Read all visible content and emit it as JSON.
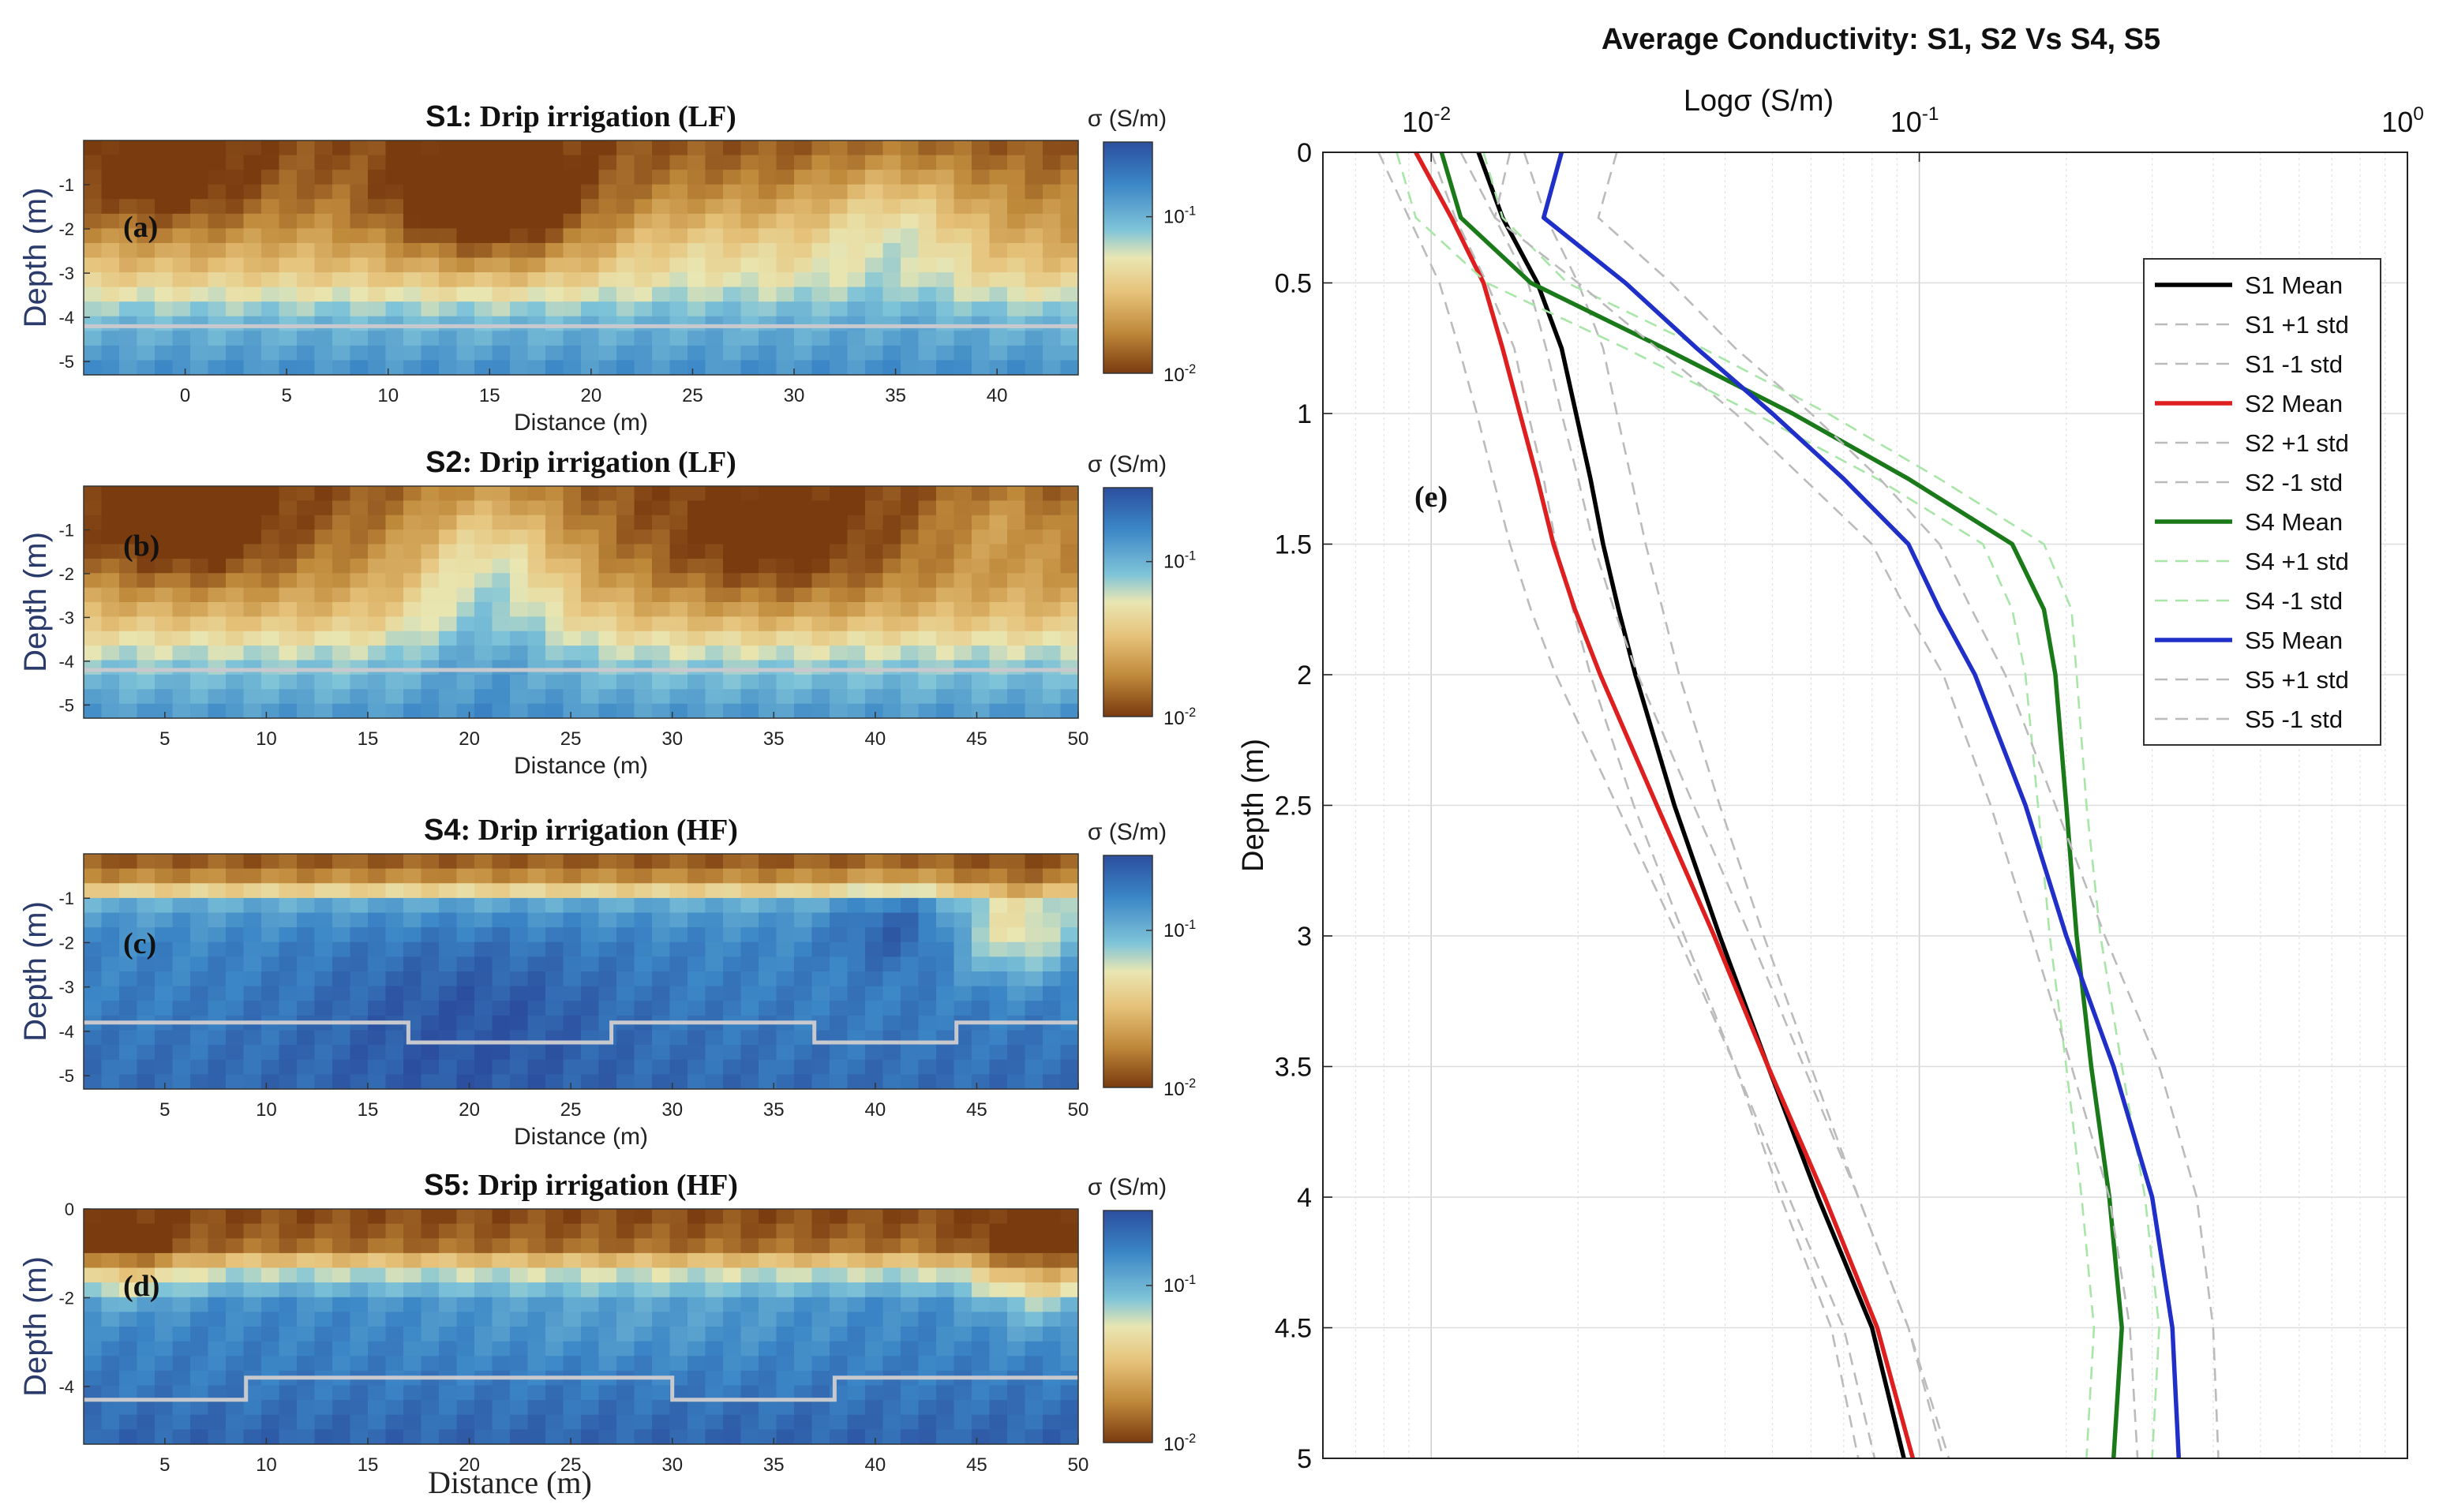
{
  "chart_data": [
    {
      "type": "heatmap",
      "panel": "(a)",
      "title_site": "S1",
      "title_text": ": Drip irrigation (LF)",
      "xlabel": "Distance (m)",
      "ylabel": "Depth (m)",
      "xticks": [
        0,
        5,
        10,
        15,
        20,
        25,
        30,
        35,
        40
      ],
      "xlim": [
        -5,
        44
      ],
      "yticks": [
        -1,
        -2,
        -3,
        -4,
        -5
      ],
      "ylim": [
        -5.3,
        0
      ],
      "colorbar": {
        "label": "σ (S/m)",
        "ticks": [
          "10⁻¹",
          "10⁻²"
        ],
        "range": [
          0.01,
          0.3
        ],
        "scale": "log"
      },
      "wet_front_depth": [
        [
          -5,
          -4.2
        ],
        [
          44,
          -4.2
        ]
      ],
      "features": [
        {
          "x": 15,
          "z": -1.5,
          "amp": -0.9,
          "rx": 5,
          "rz": 1.3
        },
        {
          "x": 35,
          "z": -2.0,
          "amp": 0.6,
          "rx": 4,
          "rz": 1.6
        },
        {
          "x": 26,
          "z": -2.5,
          "amp": 0.3,
          "rx": 6,
          "rz": 1.2
        },
        {
          "x": -1,
          "z": -1.0,
          "amp": -0.5,
          "rx": 5,
          "rz": 1.2
        }
      ],
      "base_profile": [
        [
          0,
          0.012
        ],
        [
          -1,
          0.016
        ],
        [
          -2,
          0.022
        ],
        [
          -3,
          0.035
        ],
        [
          -4,
          0.09
        ],
        [
          -5.3,
          0.15
        ]
      ]
    },
    {
      "type": "heatmap",
      "panel": "(b)",
      "title_site": "S2",
      "title_text": ": Drip irrigation (LF)",
      "xlabel": "Distance (m)",
      "ylabel": "Depth (m)",
      "xticks": [
        5,
        10,
        15,
        20,
        25,
        30,
        35,
        40,
        45,
        50
      ],
      "xlim": [
        1,
        50
      ],
      "yticks": [
        -1,
        -2,
        -3,
        -4,
        -5
      ],
      "ylim": [
        -5.3,
        0
      ],
      "colorbar": {
        "label": "σ (S/m)",
        "ticks": [
          "10⁻¹",
          "10⁻²"
        ],
        "range": [
          0.01,
          0.3
        ],
        "scale": "log"
      },
      "wet_front_depth": [
        [
          1,
          -4.2
        ],
        [
          50,
          -4.2
        ]
      ],
      "features": [
        {
          "x": 21,
          "z": -2.0,
          "amp": 0.8,
          "rx": 4,
          "rz": 2.2
        },
        {
          "x": 6,
          "z": -1.0,
          "amp": -0.6,
          "rx": 5,
          "rz": 1.3
        },
        {
          "x": 35,
          "z": -1.5,
          "amp": -0.5,
          "rx": 6,
          "rz": 1.5
        },
        {
          "x": 46,
          "z": -0.8,
          "amp": 0.3,
          "rx": 3,
          "rz": 1.0
        }
      ],
      "base_profile": [
        [
          0,
          0.012
        ],
        [
          -1,
          0.015
        ],
        [
          -2,
          0.02
        ],
        [
          -3,
          0.032
        ],
        [
          -4,
          0.075
        ],
        [
          -5.3,
          0.14
        ]
      ]
    },
    {
      "type": "heatmap",
      "panel": "(c)",
      "title_site": "S4",
      "title_text": ": Drip irrigation (HF)",
      "xlabel": "Distance (m)",
      "ylabel": "Depth (m)",
      "xticks": [
        5,
        10,
        15,
        20,
        25,
        30,
        35,
        40,
        45,
        50
      ],
      "xlim": [
        1,
        50
      ],
      "yticks": [
        -1,
        -2,
        -3,
        -4,
        -5
      ],
      "ylim": [
        -5.3,
        0
      ],
      "colorbar": {
        "label": "σ (S/m)",
        "ticks": [
          "10⁻¹",
          "10⁻²"
        ],
        "range": [
          0.01,
          0.3
        ],
        "scale": "log"
      },
      "wet_front_depth": [
        [
          1,
          -3.8
        ],
        [
          17,
          -3.8
        ],
        [
          17,
          -4.25
        ],
        [
          27,
          -4.25
        ],
        [
          27,
          -3.8
        ],
        [
          37,
          -3.8
        ],
        [
          37,
          -4.25
        ],
        [
          44,
          -4.25
        ],
        [
          44,
          -3.8
        ],
        [
          50,
          -3.8
        ]
      ],
      "features": [
        {
          "x": 47,
          "z": -1.8,
          "amp": -0.8,
          "rx": 3,
          "rz": 1.0
        },
        {
          "x": 41,
          "z": -1.5,
          "amp": 0.4,
          "rx": 3,
          "rz": 1.0
        },
        {
          "x": 20,
          "z": -3.5,
          "amp": 0.3,
          "rx": 8,
          "rz": 2.0
        }
      ],
      "base_profile": [
        [
          0,
          0.011
        ],
        [
          -0.6,
          0.02
        ],
        [
          -1.2,
          0.12
        ],
        [
          -2,
          0.16
        ],
        [
          -4,
          0.19
        ],
        [
          -5.3,
          0.22
        ]
      ]
    },
    {
      "type": "heatmap",
      "panel": "(d)",
      "title_site": "S5",
      "title_text": ": Drip irrigation (HF)",
      "xlabel": "Distance (m)",
      "ylabel": "Depth (m)",
      "xticks": [
        5,
        10,
        15,
        20,
        25,
        30,
        35,
        40,
        45,
        50
      ],
      "xlim": [
        1,
        50
      ],
      "yticks": [
        0,
        -2,
        -4
      ],
      "ylim": [
        -5.3,
        0
      ],
      "colorbar": {
        "label": "σ (S/m)",
        "ticks": [
          "10⁻¹",
          "10⁻²"
        ],
        "range": [
          0.01,
          0.3
        ],
        "scale": "log"
      },
      "wet_front_depth": [
        [
          1,
          -4.3
        ],
        [
          9,
          -4.3
        ],
        [
          9,
          -3.8
        ],
        [
          30,
          -3.8
        ],
        [
          30,
          -4.3
        ],
        [
          38,
          -4.3
        ],
        [
          38,
          -3.8
        ],
        [
          50,
          -3.8
        ]
      ],
      "features": [
        {
          "x": 48,
          "z": -1.5,
          "amp": -0.7,
          "rx": 3,
          "rz": 1.2
        },
        {
          "x": 3,
          "z": -1.3,
          "amp": -0.5,
          "rx": 3,
          "rz": 1.0
        },
        {
          "x": 28,
          "z": -2.5,
          "amp": -0.2,
          "rx": 10,
          "rz": 1.0
        }
      ],
      "base_profile": [
        [
          0,
          0.011
        ],
        [
          -0.8,
          0.014
        ],
        [
          -1.5,
          0.07
        ],
        [
          -2.2,
          0.16
        ],
        [
          -4,
          0.19
        ],
        [
          -5.3,
          0.24
        ]
      ]
    },
    {
      "type": "line",
      "panel": "(e)",
      "title": "Average Conductivity: S1, S2 Vs S4, S5",
      "xlabel": "Logσ (S/m)",
      "ylabel": "Depth (m)",
      "xscale": "log",
      "xlim": [
        0.006,
        1.0
      ],
      "xticks": [
        {
          "value": 0.01,
          "base": "10",
          "exp": "-2"
        },
        {
          "value": 0.1,
          "base": "10",
          "exp": "-1"
        },
        {
          "value": 1.0,
          "base": "10",
          "exp": "0"
        }
      ],
      "ylim": [
        0,
        5
      ],
      "yticks": [
        "0",
        "0.5",
        "1",
        "1.5",
        "2",
        "2.5",
        "3",
        "3.5",
        "4",
        "4.5",
        "5"
      ],
      "grid": true,
      "legend_position": "top-right",
      "depth": [
        0,
        0.25,
        0.5,
        0.75,
        1.0,
        1.25,
        1.5,
        1.75,
        2.0,
        2.5,
        3.0,
        3.5,
        4.0,
        4.5,
        5.0
      ],
      "series": [
        {
          "name": "S1 Mean",
          "color": "#000000",
          "style": "solid",
          "values": [
            0.0125,
            0.014,
            0.0165,
            0.0185,
            0.0198,
            0.0212,
            0.0225,
            0.0242,
            0.0262,
            0.0315,
            0.039,
            0.049,
            0.062,
            0.08,
            0.093
          ]
        },
        {
          "name": "S1 +1 std",
          "color": "#bbbbbb",
          "style": "dashed",
          "values": [
            0.0155,
            0.0172,
            0.02,
            0.0225,
            0.024,
            0.0257,
            0.0275,
            0.0298,
            0.0322,
            0.039,
            0.048,
            0.06,
            0.075,
            0.095,
            0.112
          ]
        },
        {
          "name": "S1 -1 std",
          "color": "#bbbbbb",
          "style": "dashed",
          "values": [
            0.01,
            0.0112,
            0.013,
            0.0148,
            0.0158,
            0.017,
            0.018,
            0.0195,
            0.0212,
            0.026,
            0.033,
            0.042,
            0.052,
            0.066,
            0.075
          ]
        },
        {
          "name": "S2 Mean",
          "color": "#dd1f1f",
          "style": "solid",
          "values": [
            0.0093,
            0.011,
            0.0128,
            0.014,
            0.0152,
            0.0165,
            0.0178,
            0.0197,
            0.0222,
            0.029,
            0.038,
            0.049,
            0.064,
            0.082,
            0.097
          ]
        },
        {
          "name": "S2 +1 std",
          "color": "#bbbbbb",
          "style": "dashed",
          "values": [
            0.0115,
            0.0135,
            0.0158,
            0.0172,
            0.0185,
            0.02,
            0.0215,
            0.0237,
            0.0265,
            0.0345,
            0.045,
            0.058,
            0.075,
            0.095,
            0.115
          ]
        },
        {
          "name": "S2 -1 std",
          "color": "#bbbbbb",
          "style": "dashed",
          "values": [
            0.0078,
            0.009,
            0.0104,
            0.0114,
            0.0124,
            0.0134,
            0.0145,
            0.016,
            0.018,
            0.024,
            0.032,
            0.042,
            0.054,
            0.07,
            0.081
          ]
        },
        {
          "name": "S4 Mean",
          "color": "#1a7a1a",
          "style": "solid",
          "values": [
            0.0105,
            0.0115,
            0.016,
            0.03,
            0.055,
            0.095,
            0.155,
            0.18,
            0.19,
            0.2,
            0.21,
            0.225,
            0.245,
            0.26,
            0.25
          ]
        },
        {
          "name": "S4 +1 std",
          "color": "#a8e6a8",
          "style": "dashed",
          "values": [
            0.0128,
            0.014,
            0.019,
            0.036,
            0.065,
            0.11,
            0.18,
            0.205,
            0.21,
            0.22,
            0.235,
            0.26,
            0.29,
            0.31,
            0.3
          ]
        },
        {
          "name": "S4 -1 std",
          "color": "#a8e6a8",
          "style": "dashed",
          "values": [
            0.0085,
            0.0093,
            0.013,
            0.025,
            0.046,
            0.082,
            0.135,
            0.155,
            0.165,
            0.175,
            0.185,
            0.2,
            0.215,
            0.228,
            0.22
          ]
        },
        {
          "name": "S5 Mean",
          "color": "#1f2fc8",
          "style": "solid",
          "values": [
            0.0185,
            0.017,
            0.025,
            0.035,
            0.05,
            0.07,
            0.095,
            0.11,
            0.13,
            0.165,
            0.2,
            0.25,
            0.3,
            0.33,
            0.34
          ]
        },
        {
          "name": "S5 +1 std",
          "color": "#bbbbbb",
          "style": "dashed",
          "values": [
            0.024,
            0.022,
            0.031,
            0.042,
            0.06,
            0.083,
            0.11,
            0.128,
            0.15,
            0.19,
            0.24,
            0.31,
            0.37,
            0.4,
            0.41
          ]
        },
        {
          "name": "S5 -1 std",
          "color": "#bbbbbb",
          "style": "dashed",
          "values": [
            0.0145,
            0.0135,
            0.02,
            0.029,
            0.042,
            0.058,
            0.08,
            0.094,
            0.112,
            0.14,
            0.17,
            0.205,
            0.245,
            0.27,
            0.28
          ]
        }
      ]
    }
  ]
}
